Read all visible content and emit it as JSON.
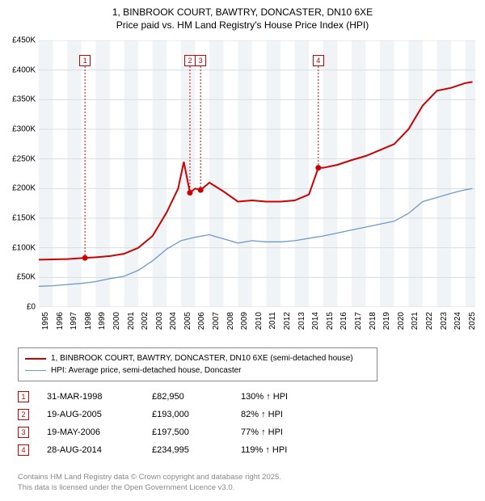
{
  "title": {
    "line1": "1, BINBROOK COURT, BAWTRY, DONCASTER, DN10 6XE",
    "line2": "Price paid vs. HM Land Registry's House Price Index (HPI)"
  },
  "chart": {
    "type": "line",
    "background_stripe_colors": [
      "#f1f4f7",
      "#ffffff"
    ],
    "grid_color": "#d8dde2",
    "ylim": [
      0,
      450000
    ],
    "ytick_step": 50000,
    "yticks": [
      "£0",
      "£50K",
      "£100K",
      "£150K",
      "£200K",
      "£250K",
      "£300K",
      "£350K",
      "£400K",
      "£450K"
    ],
    "xlim": [
      1995,
      2025.7
    ],
    "xticks": [
      1995,
      1996,
      1997,
      1998,
      1999,
      2000,
      2001,
      2002,
      2003,
      2004,
      2005,
      2006,
      2007,
      2008,
      2009,
      2010,
      2011,
      2012,
      2013,
      2014,
      2015,
      2016,
      2017,
      2018,
      2019,
      2020,
      2021,
      2022,
      2023,
      2024,
      2025
    ],
    "series": [
      {
        "name": "property",
        "color": "#cc0000",
        "width": 2,
        "data": [
          [
            1995,
            80000
          ],
          [
            1996,
            80500
          ],
          [
            1997,
            81000
          ],
          [
            1998.25,
            82950
          ],
          [
            1999,
            84000
          ],
          [
            2000,
            86000
          ],
          [
            2001,
            90000
          ],
          [
            2002,
            100000
          ],
          [
            2003,
            120000
          ],
          [
            2004,
            160000
          ],
          [
            2004.8,
            200000
          ],
          [
            2005.2,
            245000
          ],
          [
            2005.63,
            193000
          ],
          [
            2006,
            200000
          ],
          [
            2006.38,
            197500
          ],
          [
            2007,
            210000
          ],
          [
            2008,
            195000
          ],
          [
            2009,
            178000
          ],
          [
            2010,
            180000
          ],
          [
            2011,
            178000
          ],
          [
            2012,
            178000
          ],
          [
            2013,
            180000
          ],
          [
            2014,
            190000
          ],
          [
            2014.66,
            234995
          ],
          [
            2015,
            235000
          ],
          [
            2016,
            240000
          ],
          [
            2017,
            248000
          ],
          [
            2018,
            255000
          ],
          [
            2019,
            265000
          ],
          [
            2020,
            275000
          ],
          [
            2021,
            300000
          ],
          [
            2022,
            340000
          ],
          [
            2023,
            365000
          ],
          [
            2024,
            370000
          ],
          [
            2025,
            378000
          ],
          [
            2025.5,
            380000
          ]
        ]
      },
      {
        "name": "hpi",
        "color": "#6f99c8",
        "width": 1.3,
        "data": [
          [
            1995,
            35000
          ],
          [
            1996,
            36000
          ],
          [
            1997,
            38000
          ],
          [
            1998,
            40000
          ],
          [
            1999,
            43000
          ],
          [
            2000,
            48000
          ],
          [
            2001,
            52000
          ],
          [
            2002,
            62000
          ],
          [
            2003,
            78000
          ],
          [
            2004,
            98000
          ],
          [
            2005,
            112000
          ],
          [
            2006,
            118000
          ],
          [
            2007,
            122000
          ],
          [
            2008,
            115000
          ],
          [
            2009,
            108000
          ],
          [
            2010,
            112000
          ],
          [
            2011,
            110000
          ],
          [
            2012,
            110000
          ],
          [
            2013,
            112000
          ],
          [
            2014,
            116000
          ],
          [
            2015,
            120000
          ],
          [
            2016,
            125000
          ],
          [
            2017,
            130000
          ],
          [
            2018,
            135000
          ],
          [
            2019,
            140000
          ],
          [
            2020,
            145000
          ],
          [
            2021,
            158000
          ],
          [
            2022,
            178000
          ],
          [
            2023,
            185000
          ],
          [
            2024,
            192000
          ],
          [
            2025,
            198000
          ],
          [
            2025.5,
            200000
          ]
        ]
      }
    ],
    "sale_markers": [
      {
        "n": "1",
        "x": 1998.25,
        "y": 82950,
        "label_top": 18
      },
      {
        "n": "2",
        "x": 2005.63,
        "y": 193000,
        "label_top": 18
      },
      {
        "n": "3",
        "x": 2006.38,
        "y": 197500,
        "label_top": 18
      },
      {
        "n": "4",
        "x": 2014.66,
        "y": 234995,
        "label_top": 18
      }
    ]
  },
  "legend": {
    "items": [
      {
        "color": "#cc0000",
        "width": 2,
        "label": "1, BINBROOK COURT, BAWTRY, DONCASTER, DN10 6XE (semi-detached house)"
      },
      {
        "color": "#6f99c8",
        "width": 1.3,
        "label": "HPI: Average price, semi-detached house, Doncaster"
      }
    ]
  },
  "sales": [
    {
      "n": "1",
      "date": "31-MAR-1998",
      "price": "£82,950",
      "delta": "130% ↑ HPI"
    },
    {
      "n": "2",
      "date": "19-AUG-2005",
      "price": "£193,000",
      "delta": "82% ↑ HPI"
    },
    {
      "n": "3",
      "date": "19-MAY-2006",
      "price": "£197,500",
      "delta": "77% ↑ HPI"
    },
    {
      "n": "4",
      "date": "28-AUG-2014",
      "price": "£234,995",
      "delta": "119% ↑ HPI"
    }
  ],
  "footer": {
    "line1": "Contains HM Land Registry data © Crown copyright and database right 2025.",
    "line2": "This data is licensed under the Open Government Licence v3.0."
  }
}
